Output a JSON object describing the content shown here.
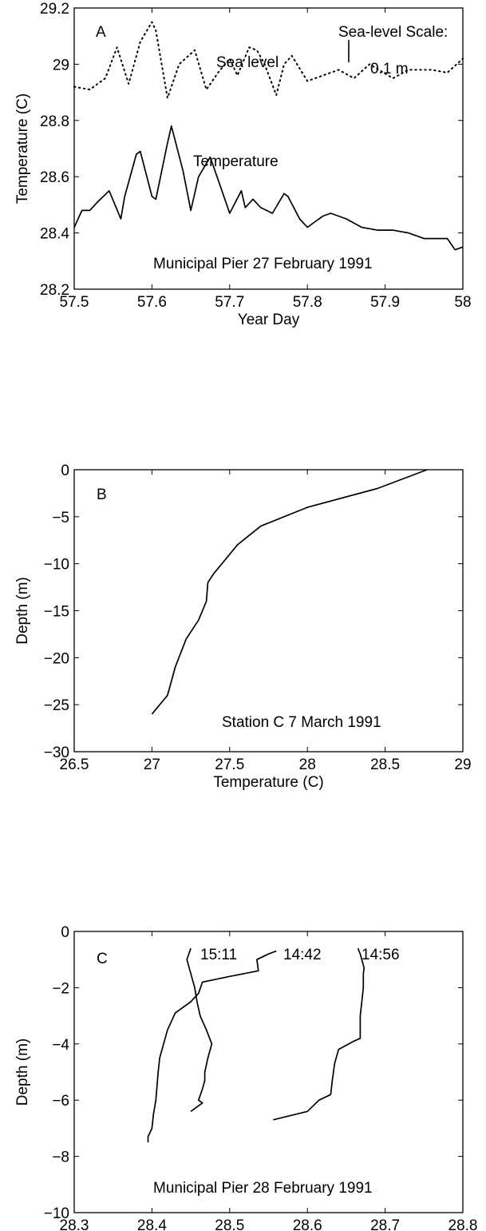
{
  "chart_data": [
    {
      "type": "line",
      "panel_label": "A",
      "xlabel": "Year Day",
      "ylabel": "Temperature (C)",
      "xlim": [
        57.5,
        58
      ],
      "ylim": [
        28.2,
        29.2
      ],
      "xticks": [
        "57.5",
        "57.6",
        "57.7",
        "57.8",
        "57.9",
        "58"
      ],
      "yticks": [
        "28.2",
        "28.4",
        "28.6",
        "28.8",
        "29",
        "29.2"
      ],
      "annotations": {
        "sea_level_label": "Sea level",
        "temperature_label": "Temperature",
        "scale_title": "Sea-level Scale:",
        "scale_value": "0.1 m",
        "caption": "Municipal Pier  27 February 1991"
      },
      "series": [
        {
          "style": "dotted",
          "x": [
            57.5,
            57.52,
            57.54,
            57.555,
            57.57,
            57.585,
            57.6,
            57.605,
            57.62,
            57.635,
            57.655,
            57.67,
            57.685,
            57.7,
            57.71,
            57.725,
            57.735,
            57.745,
            57.76,
            57.77,
            57.78,
            57.8,
            57.82,
            57.84,
            57.86,
            57.88,
            57.91,
            57.93,
            57.96,
            57.98,
            58.0
          ],
          "y": [
            28.92,
            28.91,
            28.95,
            29.06,
            28.93,
            29.08,
            29.15,
            29.12,
            28.88,
            29.0,
            29.05,
            28.91,
            28.97,
            29.02,
            28.96,
            29.06,
            29.05,
            29.0,
            28.89,
            29.0,
            29.03,
            28.94,
            28.96,
            28.98,
            28.95,
            29.0,
            28.95,
            28.98,
            28.98,
            28.97,
            29.02
          ]
        },
        {
          "style": "solid",
          "x": [
            57.5,
            57.51,
            57.52,
            57.53,
            57.545,
            57.56,
            57.565,
            57.58,
            57.585,
            57.6,
            57.605,
            57.62,
            57.625,
            57.64,
            57.65,
            57.66,
            57.675,
            57.69,
            57.7,
            57.715,
            57.72,
            57.73,
            57.74,
            57.755,
            57.77,
            57.775,
            57.79,
            57.8,
            57.81,
            57.82,
            57.83,
            57.85,
            57.87,
            57.89,
            57.91,
            57.93,
            57.95,
            57.98,
            57.99,
            58.0
          ],
          "y": [
            28.42,
            28.48,
            28.48,
            28.51,
            28.55,
            28.45,
            28.53,
            28.68,
            28.69,
            28.53,
            28.52,
            28.72,
            28.78,
            28.62,
            28.48,
            28.6,
            28.67,
            28.55,
            28.47,
            28.55,
            28.49,
            28.52,
            28.49,
            28.47,
            28.54,
            28.53,
            28.45,
            28.42,
            28.44,
            28.46,
            28.47,
            28.45,
            28.42,
            28.41,
            28.41,
            28.4,
            28.38,
            28.38,
            28.34,
            28.35
          ]
        }
      ]
    },
    {
      "type": "line",
      "panel_label": "B",
      "xlabel": "Temperature (C)",
      "ylabel": "Depth (m)",
      "xlim": [
        26.5,
        29
      ],
      "ylim": [
        -30,
        0
      ],
      "xticks": [
        "26.5",
        "27",
        "27.5",
        "28",
        "28.5",
        "29"
      ],
      "yticks": [
        "-30",
        "-25",
        "-20",
        "-15",
        "-10",
        "-5",
        "0"
      ],
      "annotations": {
        "caption": "Station C  7 March 1991"
      },
      "series": [
        {
          "style": "solid",
          "x": [
            28.77,
            28.45,
            28.0,
            27.7,
            27.55,
            27.45,
            27.4,
            27.36,
            27.35,
            27.3,
            27.22,
            27.15,
            27.1,
            27.0
          ],
          "y": [
            0,
            -2,
            -4,
            -6,
            -8,
            -10,
            -11,
            -12,
            -14,
            -16,
            -18,
            -21,
            -24,
            -26
          ]
        }
      ]
    },
    {
      "type": "line",
      "panel_label": "C",
      "xlabel": "Temperature (C)",
      "ylabel": "Depth (m)",
      "xlim": [
        28.3,
        28.8
      ],
      "ylim": [
        -10,
        0
      ],
      "xticks": [
        "28.3",
        "28.4",
        "28.5",
        "28.6",
        "28.7",
        "28.8"
      ],
      "yticks": [
        "-10",
        "-8",
        "-6",
        "-4",
        "-2",
        "0"
      ],
      "annotations": {
        "caption": "Municipal Pier  28 February 1991"
      },
      "series": [
        {
          "name": "15:11",
          "x": [
            28.45,
            28.445,
            28.45,
            28.455,
            28.458,
            28.462,
            28.47,
            28.477,
            28.472,
            28.468,
            28.468,
            28.465,
            28.46,
            28.465,
            28.45
          ],
          "y": [
            -0.6,
            -1.0,
            -1.5,
            -2.0,
            -2.5,
            -3.0,
            -3.5,
            -4.0,
            -4.5,
            -5.0,
            -5.3,
            -5.6,
            -6.0,
            -6.1,
            -6.4
          ]
        },
        {
          "name": "14:42",
          "x": [
            28.56,
            28.55,
            28.535,
            28.537,
            28.5,
            28.465,
            28.46,
            28.45,
            28.43,
            28.42,
            28.415,
            28.41,
            28.408,
            28.405,
            28.402,
            28.4,
            28.395,
            28.395
          ],
          "y": [
            -0.7,
            -0.8,
            -1.0,
            -1.4,
            -1.6,
            -1.8,
            -2.2,
            -2.5,
            -2.9,
            -3.5,
            -4.0,
            -4.5,
            -5.0,
            -6.0,
            -6.5,
            -7.0,
            -7.3,
            -7.5
          ]
        },
        {
          "name": "14:56",
          "x": [
            28.665,
            28.668,
            28.673,
            28.672,
            28.672,
            28.67,
            28.668,
            28.668,
            28.66,
            28.64,
            28.635,
            28.632,
            28.63,
            28.615,
            28.6,
            28.556
          ],
          "y": [
            -0.6,
            -0.8,
            -1.3,
            -1.5,
            -2.0,
            -2.5,
            -3.0,
            -3.8,
            -3.9,
            -4.2,
            -4.7,
            -5.3,
            -5.8,
            -6.0,
            -6.4,
            -6.7
          ]
        }
      ]
    }
  ]
}
